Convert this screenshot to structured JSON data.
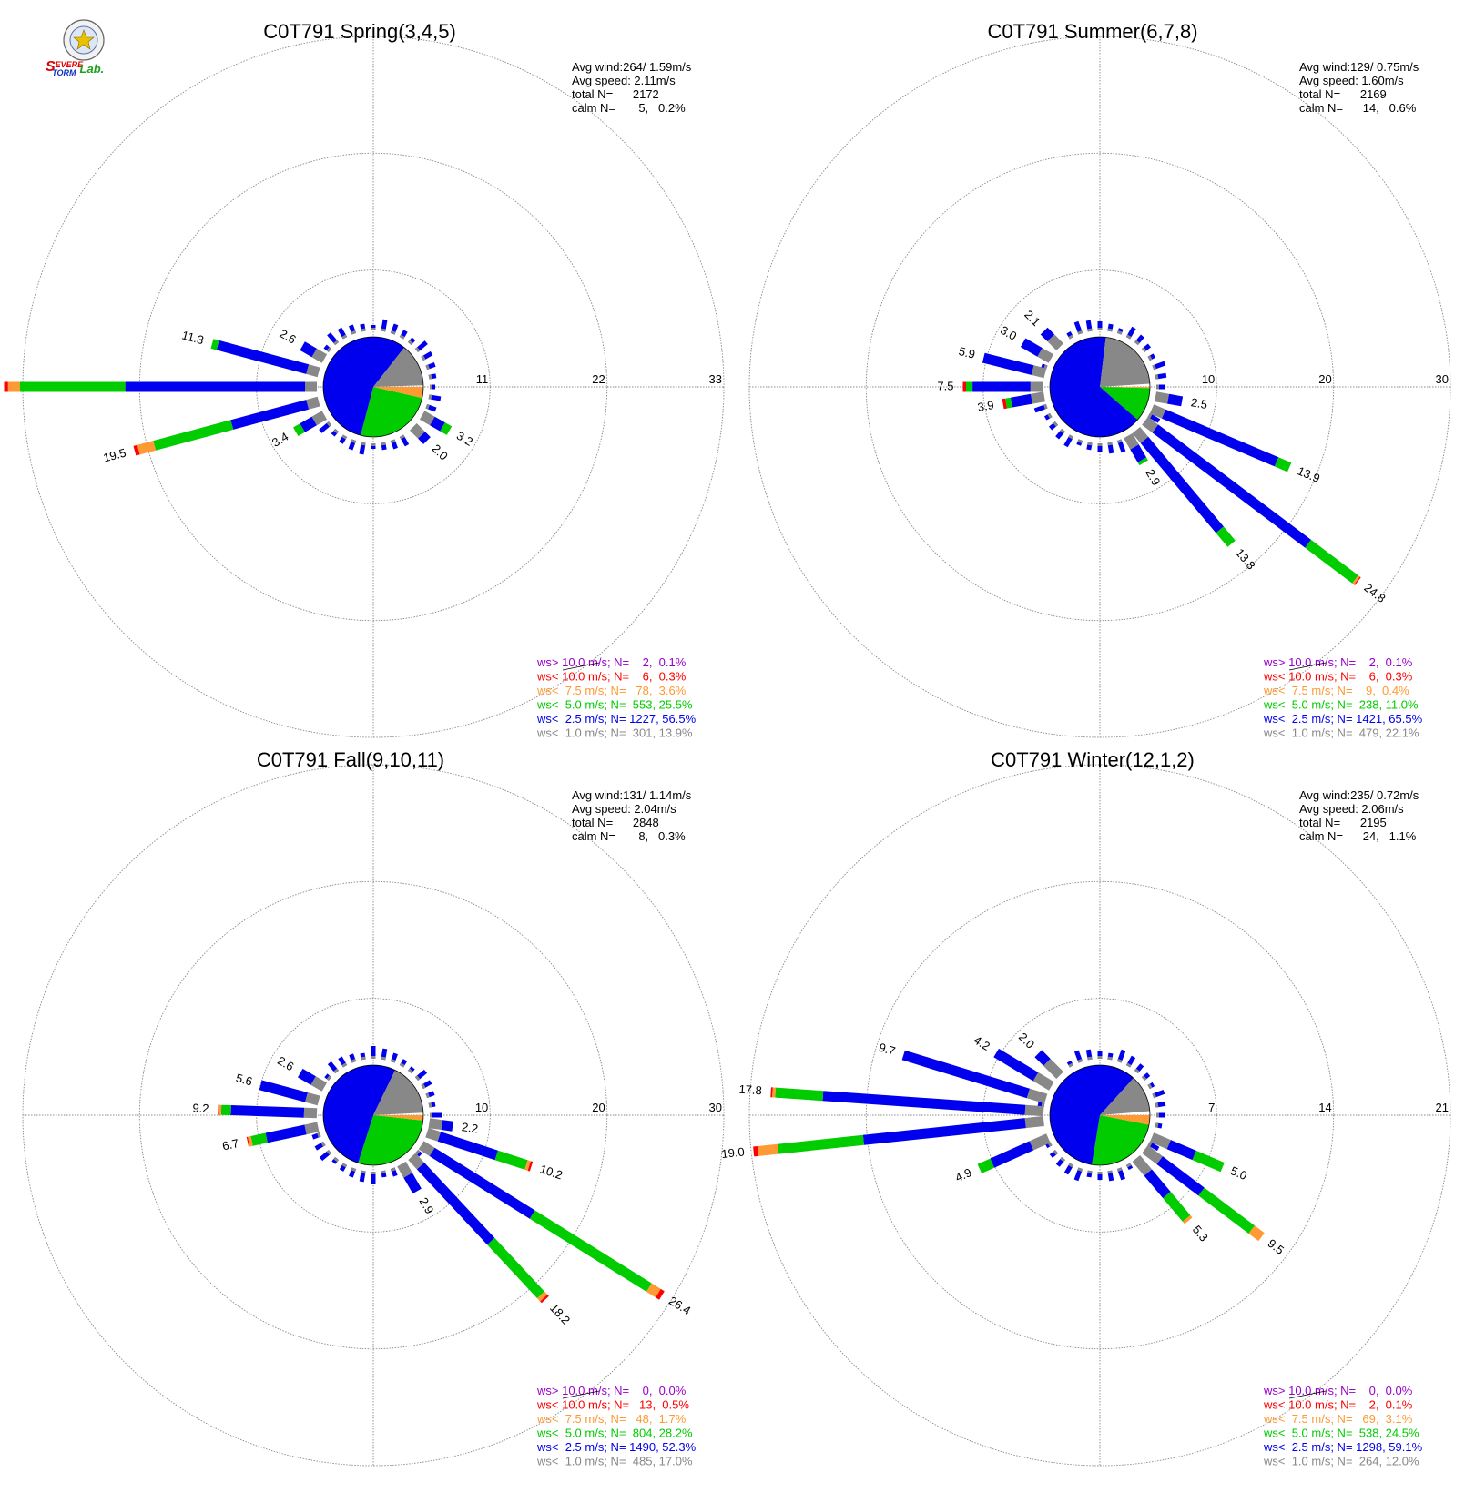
{
  "logo": {
    "text": "Severe Storm Lab."
  },
  "colors": {
    "gt10": "#9900cc",
    "lt10": "#ff0000",
    "lt7_5": "#ff9933",
    "lt5": "#00cc00",
    "lt2_5": "#0000ee",
    "lt1": "#888888",
    "grid": "#888888"
  },
  "chart_data": [
    {
      "type": "windrose",
      "title": "C0T791 Spring(3,4,5)",
      "stats": [
        "Avg wind:264/ 1.59m/s",
        "Avg speed: 2.11m/s",
        "total N=      2172",
        "calm N=       5,   0.2%"
      ],
      "rmax": 33,
      "ring_labels": [
        "11",
        "22",
        "33"
      ],
      "labeled_petals": [
        {
          "dir": 270,
          "value": 32.0,
          "label": "32.0",
          "parts": [
            {
              "cls": "lt1",
              "v": 1.2
            },
            {
              "cls": "lt2_5",
              "v": 18.4
            },
            {
              "cls": "lt5",
              "v": 10.8
            },
            {
              "cls": "lt7_5",
              "v": 1.2
            },
            {
              "cls": "lt10",
              "v": 0.4
            }
          ]
        },
        {
          "dir": 255,
          "value": 19.5,
          "label": "19.5",
          "parts": [
            {
              "cls": "lt1",
              "v": 1.2
            },
            {
              "cls": "lt2_5",
              "v": 8.0
            },
            {
              "cls": "lt5",
              "v": 8.2
            },
            {
              "cls": "lt7_5",
              "v": 1.7
            },
            {
              "cls": "lt10",
              "v": 0.4
            }
          ]
        },
        {
          "dir": 285,
          "value": 11.3,
          "label": "11.3",
          "parts": [
            {
              "cls": "lt1",
              "v": 1.2
            },
            {
              "cls": "lt2_5",
              "v": 9.5
            },
            {
              "cls": "lt5",
              "v": 0.6
            }
          ]
        },
        {
          "dir": 300,
          "value": 2.6,
          "label": "2.6",
          "parts": [
            {
              "cls": "lt1",
              "v": 1.2
            },
            {
              "cls": "lt2_5",
              "v": 1.4
            }
          ]
        },
        {
          "dir": 240,
          "value": 3.4,
          "label": "3.4",
          "parts": [
            {
              "cls": "lt1",
              "v": 1.2
            },
            {
              "cls": "lt2_5",
              "v": 1.4
            },
            {
              "cls": "lt5",
              "v": 0.8
            }
          ]
        },
        {
          "dir": 120,
          "value": 3.2,
          "label": "3.2",
          "parts": [
            {
              "cls": "lt1",
              "v": 1.2
            },
            {
              "cls": "lt2_5",
              "v": 1.2
            },
            {
              "cls": "lt5",
              "v": 0.8
            }
          ]
        },
        {
          "dir": 135,
          "value": 2.0,
          "label": "2.0",
          "parts": [
            {
              "cls": "lt1",
              "v": 1.2
            },
            {
              "cls": "lt2_5",
              "v": 0.8
            }
          ]
        }
      ],
      "pie": [
        {
          "cls": "lt7_5",
          "frac": 0.036
        },
        {
          "cls": "lt5",
          "frac": 0.255
        },
        {
          "cls": "lt2_5",
          "frac": 0.565
        },
        {
          "cls": "lt1",
          "frac": 0.139
        }
      ],
      "legend": [
        {
          "cls": "gt10",
          "text": "ws> 10.0 m/s; N=    2,  0.1%"
        },
        {
          "cls": "lt10",
          "text": "ws< 10.0 m/s; N=    6,  0.3%"
        },
        {
          "cls": "lt7_5",
          "text": "ws<  7.5 m/s; N=   78,  3.6%"
        },
        {
          "cls": "lt5",
          "text": "ws<  5.0 m/s; N=  553, 25.5%"
        },
        {
          "cls": "lt2_5",
          "text": "ws<  2.5 m/s; N= 1227, 56.5%"
        },
        {
          "cls": "lt1",
          "text": "ws<  1.0 m/s; N=  301, 13.9%"
        }
      ]
    },
    {
      "type": "windrose",
      "title": "C0T791 Summer(6,7,8)",
      "stats": [
        "Avg wind:129/ 0.75m/s",
        "Avg speed: 1.60m/s",
        "total N=      2169",
        "calm N=      14,   0.6%"
      ],
      "rmax": 30,
      "ring_labels": [
        "10",
        "20",
        "30"
      ],
      "labeled_petals": [
        {
          "dir": 127,
          "value": 24.8,
          "label": "24.8",
          "parts": [
            {
              "cls": "lt1",
              "v": 1.2
            },
            {
              "cls": "lt2_5",
              "v": 17.8
            },
            {
              "cls": "lt5",
              "v": 5.5
            },
            {
              "cls": "lt7_5",
              "v": 0.2
            },
            {
              "cls": "lt10",
              "v": 0.1
            }
          ]
        },
        {
          "dir": 113,
          "value": 13.9,
          "label": "13.9",
          "parts": [
            {
              "cls": "lt1",
              "v": 1.2
            },
            {
              "cls": "lt2_5",
              "v": 11.4
            },
            {
              "cls": "lt5",
              "v": 1.3
            }
          ]
        },
        {
          "dir": 140,
          "value": 13.8,
          "label": "13.8",
          "parts": [
            {
              "cls": "lt1",
              "v": 1.2
            },
            {
              "cls": "lt2_5",
              "v": 10.9
            },
            {
              "cls": "lt5",
              "v": 1.7
            }
          ]
        },
        {
          "dir": 100,
          "value": 2.5,
          "label": "2.5",
          "parts": [
            {
              "cls": "lt1",
              "v": 1.2
            },
            {
              "cls": "lt2_5",
              "v": 1.3
            }
          ]
        },
        {
          "dir": 150,
          "value": 2.9,
          "label": "2.9",
          "parts": [
            {
              "cls": "lt1",
              "v": 1.2
            },
            {
              "cls": "lt2_5",
              "v": 1.4
            },
            {
              "cls": "lt5",
              "v": 0.3
            }
          ]
        },
        {
          "dir": 270,
          "value": 7.5,
          "label": "7.5",
          "parts": [
            {
              "cls": "lt1",
              "v": 1.2
            },
            {
              "cls": "lt2_5",
              "v": 5.4
            },
            {
              "cls": "lt5",
              "v": 0.6
            },
            {
              "cls": "lt10",
              "v": 0.3
            }
          ]
        },
        {
          "dir": 284,
          "value": 5.9,
          "label": "5.9",
          "parts": [
            {
              "cls": "lt1",
              "v": 1.2
            },
            {
              "cls": "lt2_5",
              "v": 4.7
            }
          ]
        },
        {
          "dir": 260,
          "value": 3.9,
          "label": "3.9",
          "parts": [
            {
              "cls": "lt1",
              "v": 1.2
            },
            {
              "cls": "lt2_5",
              "v": 1.9
            },
            {
              "cls": "lt5",
              "v": 0.5
            },
            {
              "cls": "lt10",
              "v": 0.3
            }
          ]
        },
        {
          "dir": 300,
          "value": 3.0,
          "label": "3.0",
          "parts": [
            {
              "cls": "lt1",
              "v": 1.2
            },
            {
              "cls": "lt2_5",
              "v": 1.8
            }
          ]
        },
        {
          "dir": 315,
          "value": 2.1,
          "label": "2.1",
          "parts": [
            {
              "cls": "lt1",
              "v": 1.2
            },
            {
              "cls": "lt2_5",
              "v": 0.9
            }
          ]
        }
      ],
      "pie": [
        {
          "cls": "lt7_5",
          "frac": 0.004
        },
        {
          "cls": "lt5",
          "frac": 0.11
        },
        {
          "cls": "lt2_5",
          "frac": 0.655
        },
        {
          "cls": "lt1",
          "frac": 0.221
        }
      ],
      "legend": [
        {
          "cls": "gt10",
          "text": "ws> 10.0 m/s; N=    2,  0.1%"
        },
        {
          "cls": "lt10",
          "text": "ws< 10.0 m/s; N=    6,  0.3%"
        },
        {
          "cls": "lt7_5",
          "text": "ws<  7.5 m/s; N=    9,  0.4%"
        },
        {
          "cls": "lt5",
          "text": "ws<  5.0 m/s; N=  238, 11.0%"
        },
        {
          "cls": "lt2_5",
          "text": "ws<  2.5 m/s; N= 1421, 65.5%"
        },
        {
          "cls": "lt1",
          "text": "ws<  1.0 m/s; N=  479, 22.1%"
        }
      ]
    },
    {
      "type": "windrose",
      "title": "C0T791 Fall(9,10,11)",
      "stats": [
        "Avg wind:131/ 1.14m/s",
        "Avg speed: 2.04m/s",
        "total N=      2848",
        "calm N=       8,   0.3%"
      ],
      "rmax": 30,
      "ring_labels": [
        "10",
        "20",
        "30"
      ],
      "labeled_petals": [
        {
          "dir": 122,
          "value": 26.4,
          "label": "26.4",
          "parts": [
            {
              "cls": "lt1",
              "v": 1.2
            },
            {
              "cls": "lt2_5",
              "v": 11.0
            },
            {
              "cls": "lt5",
              "v": 12.8
            },
            {
              "cls": "lt7_5",
              "v": 1.0
            },
            {
              "cls": "lt10",
              "v": 0.4
            }
          ]
        },
        {
          "dir": 137,
          "value": 18.2,
          "label": "18.2",
          "parts": [
            {
              "cls": "lt1",
              "v": 1.2
            },
            {
              "cls": "lt2_5",
              "v": 9.6
            },
            {
              "cls": "lt5",
              "v": 6.8
            },
            {
              "cls": "lt7_5",
              "v": 0.4
            },
            {
              "cls": "lt10",
              "v": 0.2
            }
          ]
        },
        {
          "dir": 108,
          "value": 10.2,
          "label": "10.2",
          "parts": [
            {
              "cls": "lt1",
              "v": 1.2
            },
            {
              "cls": "lt2_5",
              "v": 5.6
            },
            {
              "cls": "lt5",
              "v": 2.9
            },
            {
              "cls": "lt7_5",
              "v": 0.3
            },
            {
              "cls": "lt10",
              "v": 0.2
            }
          ]
        },
        {
          "dir": 98,
          "value": 2.2,
          "label": "2.2",
          "parts": [
            {
              "cls": "lt1",
              "v": 1.2
            },
            {
              "cls": "lt2_5",
              "v": 1.0
            }
          ]
        },
        {
          "dir": 150,
          "value": 2.9,
          "label": "2.9",
          "parts": [
            {
              "cls": "lt1",
              "v": 1.2
            },
            {
              "cls": "lt2_5",
              "v": 1.7
            }
          ]
        },
        {
          "dir": 272,
          "value": 9.2,
          "label": "9.2",
          "parts": [
            {
              "cls": "lt1",
              "v": 1.2
            },
            {
              "cls": "lt2_5",
              "v": 6.8
            },
            {
              "cls": "lt5",
              "v": 0.9
            },
            {
              "cls": "lt7_5",
              "v": 0.2
            },
            {
              "cls": "lt10",
              "v": 0.1
            }
          ]
        },
        {
          "dir": 258,
          "value": 6.7,
          "label": "6.7",
          "parts": [
            {
              "cls": "lt1",
              "v": 1.2
            },
            {
              "cls": "lt2_5",
              "v": 3.7
            },
            {
              "cls": "lt5",
              "v": 1.4
            },
            {
              "cls": "lt7_5",
              "v": 0.3
            },
            {
              "cls": "lt10",
              "v": 0.1
            }
          ]
        },
        {
          "dir": 285,
          "value": 5.6,
          "label": "5.6",
          "parts": [
            {
              "cls": "lt1",
              "v": 1.2
            },
            {
              "cls": "lt2_5",
              "v": 4.4
            }
          ]
        },
        {
          "dir": 300,
          "value": 2.6,
          "label": "2.6",
          "parts": [
            {
              "cls": "lt1",
              "v": 1.2
            },
            {
              "cls": "lt2_5",
              "v": 1.4
            }
          ]
        }
      ],
      "pie": [
        {
          "cls": "lt7_5",
          "frac": 0.017
        },
        {
          "cls": "lt5",
          "frac": 0.282
        },
        {
          "cls": "lt2_5",
          "frac": 0.523
        },
        {
          "cls": "lt1",
          "frac": 0.17
        }
      ],
      "legend": [
        {
          "cls": "gt10",
          "text": "ws> 10.0 m/s; N=    0,  0.0%"
        },
        {
          "cls": "lt10",
          "text": "ws< 10.0 m/s; N=   13,  0.5%"
        },
        {
          "cls": "lt7_5",
          "text": "ws<  7.5 m/s; N=   48,  1.7%"
        },
        {
          "cls": "lt5",
          "text": "ws<  5.0 m/s; N=  804, 28.2%"
        },
        {
          "cls": "lt2_5",
          "text": "ws<  2.5 m/s; N= 1490, 52.3%"
        },
        {
          "cls": "lt1",
          "text": "ws<  1.0 m/s; N=  485, 17.0%"
        }
      ]
    },
    {
      "type": "windrose",
      "title": "C0T791 Winter(12,1,2)",
      "stats": [
        "Avg wind:235/ 0.72m/s",
        "Avg speed: 2.06m/s",
        "total N=      2195",
        "calm N=      24,   1.1%"
      ],
      "rmax": 21,
      "ring_labels": [
        "7",
        "14",
        "21"
      ],
      "labeled_petals": [
        {
          "dir": 264,
          "value": 19.0,
          "label": "19.0",
          "parts": [
            {
              "cls": "lt1",
              "v": 1.2
            },
            {
              "cls": "lt2_5",
              "v": 10.6
            },
            {
              "cls": "lt5",
              "v": 5.6
            },
            {
              "cls": "lt7_5",
              "v": 1.3
            },
            {
              "cls": "lt10",
              "v": 0.3
            }
          ]
        },
        {
          "dir": 274,
          "value": 17.8,
          "label": "17.8",
          "parts": [
            {
              "cls": "lt1",
              "v": 1.2
            },
            {
              "cls": "lt2_5",
              "v": 13.2
            },
            {
              "cls": "lt5",
              "v": 3.1
            },
            {
              "cls": "lt7_5",
              "v": 0.2
            },
            {
              "cls": "lt10",
              "v": 0.1
            }
          ]
        },
        {
          "dir": 287,
          "value": 9.7,
          "label": "9.7",
          "parts": [
            {
              "cls": "lt1",
              "v": 1.2
            },
            {
              "cls": "lt2_5",
              "v": 8.5
            }
          ]
        },
        {
          "dir": 301,
          "value": 4.2,
          "label": "4.2",
          "parts": [
            {
              "cls": "lt1",
              "v": 1.2
            },
            {
              "cls": "lt2_5",
              "v": 3.0
            }
          ]
        },
        {
          "dir": 315,
          "value": 2.0,
          "label": "2.0",
          "parts": [
            {
              "cls": "lt1",
              "v": 1.2
            },
            {
              "cls": "lt2_5",
              "v": 0.8
            }
          ]
        },
        {
          "dir": 246,
          "value": 4.9,
          "label": "4.9",
          "parts": [
            {
              "cls": "lt1",
              "v": 1.2
            },
            {
              "cls": "lt2_5",
              "v": 2.8
            },
            {
              "cls": "lt5",
              "v": 0.9
            }
          ]
        },
        {
          "dir": 113,
          "value": 5.0,
          "label": "5.0",
          "parts": [
            {
              "cls": "lt1",
              "v": 1.2
            },
            {
              "cls": "lt2_5",
              "v": 1.8
            },
            {
              "cls": "lt5",
              "v": 2.0
            }
          ]
        },
        {
          "dir": 127,
          "value": 9.5,
          "label": "9.5",
          "parts": [
            {
              "cls": "lt1",
              "v": 1.2
            },
            {
              "cls": "lt2_5",
              "v": 3.4
            },
            {
              "cls": "lt5",
              "v": 4.1
            },
            {
              "cls": "lt7_5",
              "v": 0.8
            }
          ]
        },
        {
          "dir": 140,
          "value": 5.3,
          "label": "5.3",
          "parts": [
            {
              "cls": "lt1",
              "v": 1.2
            },
            {
              "cls": "lt2_5",
              "v": 1.9
            },
            {
              "cls": "lt5",
              "v": 2.0
            },
            {
              "cls": "lt7_5",
              "v": 0.2
            }
          ]
        }
      ],
      "pie": [
        {
          "cls": "lt7_5",
          "frac": 0.031
        },
        {
          "cls": "lt5",
          "frac": 0.245
        },
        {
          "cls": "lt2_5",
          "frac": 0.591
        },
        {
          "cls": "lt1",
          "frac": 0.12
        }
      ],
      "legend": [
        {
          "cls": "gt10",
          "text": "ws> 10.0 m/s; N=    0,  0.0%"
        },
        {
          "cls": "lt10",
          "text": "ws< 10.0 m/s; N=    2,  0.1%"
        },
        {
          "cls": "lt7_5",
          "text": "ws<  7.5 m/s; N=   69,  3.1%"
        },
        {
          "cls": "lt5",
          "text": "ws<  5.0 m/s; N=  538, 24.5%"
        },
        {
          "cls": "lt2_5",
          "text": "ws<  2.5 m/s; N= 1298, 59.1%"
        },
        {
          "cls": "lt1",
          "text": "ws<  1.0 m/s; N=  264, 12.0%"
        }
      ]
    }
  ]
}
